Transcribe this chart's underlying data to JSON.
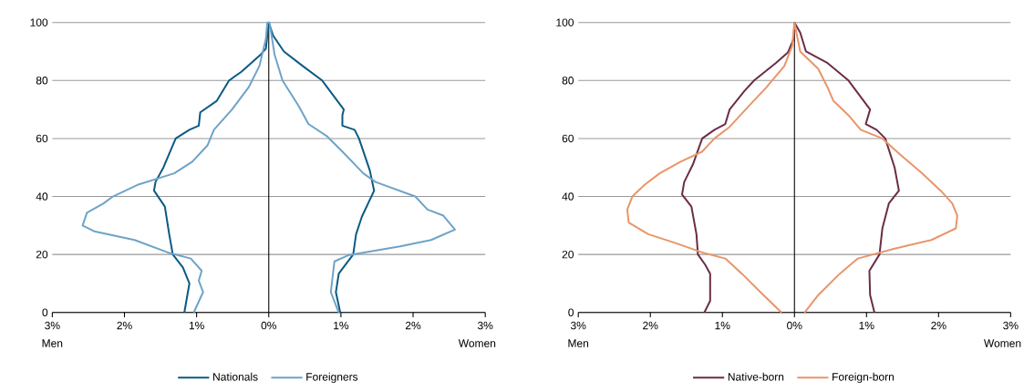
{
  "chart_data": [
    {
      "type": "line",
      "xlim": [
        -3,
        3
      ],
      "ylim": [
        0,
        100
      ],
      "xticks": [
        {
          "value": -3,
          "label": "3%"
        },
        {
          "value": -2,
          "label": "2%"
        },
        {
          "value": -1,
          "label": "1%"
        },
        {
          "value": 0,
          "label": "0%"
        },
        {
          "value": 1,
          "label": "1%"
        },
        {
          "value": 2,
          "label": "2%"
        },
        {
          "value": 3,
          "label": "3%"
        }
      ],
      "yticks": [
        0,
        20,
        40,
        60,
        80,
        100
      ],
      "grid": "y",
      "legend": "bottom",
      "annotations": [
        "Men",
        "Women"
      ],
      "ref_lines": [
        {
          "axis": "x",
          "value": 0,
          "color": "#000000"
        }
      ],
      "series": [
        {
          "name": "Nationals",
          "color": "#0b5a85",
          "x": [
            -1.17,
            -1.1,
            -1.19,
            -1.33,
            -1.38,
            -1.44,
            -1.59,
            -1.57,
            -1.46,
            -1.29,
            -1.1,
            -0.97,
            -0.95,
            -0.72,
            -0.55,
            -0.38,
            -0.11,
            -0.04,
            0,
            0.06,
            0.21,
            0.47,
            0.74,
            1.04,
            1.02,
            1.02,
            1.19,
            1.25,
            1.4,
            1.46,
            1.29,
            1.21,
            1.17,
            0.97,
            0.93,
            0.99
          ],
          "values": [
            0,
            10,
            15.5,
            20,
            27,
            36.5,
            42,
            45,
            50,
            60,
            63,
            64.4,
            69,
            73,
            80,
            83,
            89,
            91,
            100,
            95.5,
            90,
            85,
            80,
            70,
            68,
            64.4,
            63,
            60,
            49,
            42,
            33,
            27,
            20,
            13.4,
            7,
            0
          ]
        },
        {
          "name": "Foreigners",
          "color": "#6fa3c8",
          "x": [
            -1.04,
            -0.91,
            -0.97,
            -0.93,
            -1.08,
            -1.4,
            -1.86,
            -2.42,
            -2.58,
            -2.52,
            -2.29,
            -2.16,
            -1.82,
            -1.31,
            -1.06,
            -0.85,
            -0.76,
            -0.51,
            -0.28,
            -0.13,
            -0.04,
            -0.02,
            0.01,
            0.08,
            0.19,
            0.42,
            0.55,
            0.81,
            1.02,
            1.31,
            1.48,
            2.03,
            2.2,
            2.42,
            2.58,
            2.25,
            1.82,
            1.1,
            0.91,
            0.89,
            0.87,
            0.86,
            0.97
          ],
          "values": [
            0,
            7,
            11,
            14.4,
            18.6,
            20.7,
            25,
            28,
            30,
            34.4,
            37.6,
            40,
            44,
            48,
            52,
            57.6,
            63,
            70,
            77.6,
            85,
            94.4,
            100,
            100,
            89,
            80,
            71,
            65,
            60.7,
            55.5,
            48,
            45,
            40,
            35.5,
            33.4,
            28.6,
            25,
            22.8,
            19.7,
            17.6,
            13.4,
            9.2,
            7,
            0
          ]
        }
      ]
    },
    {
      "type": "line",
      "xlim": [
        -3,
        3
      ],
      "ylim": [
        0,
        100
      ],
      "xticks": [
        {
          "value": -3,
          "label": "3%"
        },
        {
          "value": -2,
          "label": "2%"
        },
        {
          "value": -1,
          "label": "1%"
        },
        {
          "value": 0,
          "label": "0%"
        },
        {
          "value": 1,
          "label": "1%"
        },
        {
          "value": 2,
          "label": "2%"
        },
        {
          "value": 3,
          "label": "3%"
        }
      ],
      "yticks": [
        0,
        20,
        40,
        60,
        80,
        100
      ],
      "grid": "y",
      "legend": "bottom",
      "annotations": [
        "Men",
        "Women"
      ],
      "ref_lines": [
        {
          "axis": "x",
          "value": 0,
          "color": "#000000"
        }
      ],
      "series": [
        {
          "name": "Native-born",
          "color": "#6b2d45",
          "x": [
            -1.25,
            -1.17,
            -1.17,
            -1.24,
            -1.34,
            -1.36,
            -1.43,
            -1.56,
            -1.53,
            -1.41,
            -1.28,
            -1.11,
            -0.96,
            -0.9,
            -0.69,
            -0.56,
            -0.26,
            -0.09,
            -0.01,
            0,
            0.08,
            0.16,
            0.46,
            0.75,
            1.05,
            0.99,
            1.14,
            1.26,
            1.39,
            1.45,
            1.31,
            1.22,
            1.18,
            1.04,
            1.05,
            1.11
          ],
          "values": [
            0,
            4,
            13.4,
            16.5,
            20,
            27,
            36.5,
            40.7,
            45,
            51,
            60,
            63,
            65,
            70,
            76.5,
            80,
            86,
            89.7,
            94.4,
            100,
            96.5,
            90,
            86,
            80,
            70,
            65,
            63,
            60,
            50,
            42,
            37.6,
            29,
            20,
            14.4,
            6,
            0
          ]
        },
        {
          "name": "Foreign-born",
          "color": "#e8956a",
          "x": [
            -0.18,
            -0.43,
            -0.73,
            -0.96,
            -1.28,
            -1.66,
            -2.03,
            -2.3,
            -2.32,
            -2.25,
            -2.08,
            -1.87,
            -1.58,
            -1.28,
            -1.11,
            -0.9,
            -0.64,
            -0.39,
            -0.14,
            -0.03,
            0,
            0.08,
            0.33,
            0.46,
            0.54,
            0.75,
            0.92,
            1.22,
            1.47,
            1.77,
            2.03,
            2.19,
            2.26,
            2.24,
            1.9,
            1.39,
            0.88,
            0.63,
            0.33,
            0.14
          ],
          "values": [
            0,
            6,
            13.4,
            18.6,
            20.7,
            24,
            27,
            31,
            35.5,
            40,
            44,
            48,
            52,
            55.5,
            60,
            64,
            71,
            77.6,
            85,
            92,
            100,
            90,
            84,
            77.6,
            73,
            68,
            63,
            60,
            54.4,
            48,
            42,
            37.6,
            33.4,
            29,
            25,
            22,
            18.6,
            13.4,
            6,
            0
          ]
        }
      ]
    }
  ]
}
